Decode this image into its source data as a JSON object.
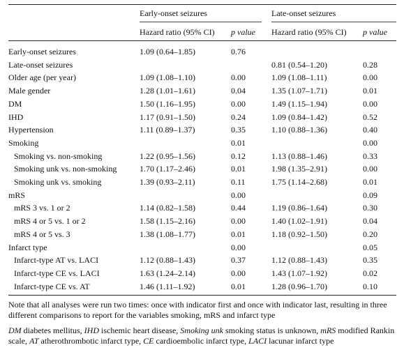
{
  "headers": {
    "group1": "Early-onset seizures",
    "group2": "Late-onset seizures",
    "hr": "Hazard ratio (95% CI)",
    "p": "p value"
  },
  "rows": [
    {
      "label": "Early-onset seizures",
      "indent": false,
      "hr1": "1.09 (0.64–1.85)",
      "p1": "0.76",
      "hr2": "",
      "p2": ""
    },
    {
      "label": "Late-onset seizures",
      "indent": false,
      "hr1": "",
      "p1": "",
      "hr2": "0.81 (0.54–1.20)",
      "p2": "0.28"
    },
    {
      "label": "Older age (per year)",
      "indent": false,
      "hr1": "1.09 (1.08–1.10)",
      "p1": "0.00",
      "hr2": "1.09 (1.08–1.11)",
      "p2": "0.00"
    },
    {
      "label": "Male gender",
      "indent": false,
      "hr1": "1.28 (1.01–1.61)",
      "p1": "0.04",
      "hr2": "1.35 (1.07–1.71)",
      "p2": "0.01"
    },
    {
      "label": "DM",
      "indent": false,
      "hr1": "1.50 (1.16–1.95)",
      "p1": "0.00",
      "hr2": "1.49 (1.15–1.94)",
      "p2": "0.00"
    },
    {
      "label": "IHD",
      "indent": false,
      "hr1": "1.17 (0.91–1.50)",
      "p1": "0.24",
      "hr2": "1.09 (0.84–1.42)",
      "p2": "0.52"
    },
    {
      "label": "Hypertension",
      "indent": false,
      "hr1": "1.11 (0.89–1.37)",
      "p1": "0.35",
      "hr2": "1.10 (0.88–1.36)",
      "p2": "0.40"
    },
    {
      "label": "Smoking",
      "indent": false,
      "hr1": "",
      "p1": "0.01",
      "hr2": "",
      "p2": "0.00"
    },
    {
      "label": "Smoking vs. non-smoking",
      "indent": true,
      "hr1": "1.22 (0.95–1.56)",
      "p1": "0.12",
      "hr2": "1.13 (0.88–1.46)",
      "p2": "0.33"
    },
    {
      "label": "Smoking unk vs. non-smoking",
      "indent": true,
      "hr1": "1.70 (1.17–2.46)",
      "p1": "0.01",
      "hr2": "1.98 (1.35–2.91)",
      "p2": "0.00"
    },
    {
      "label": "Smoking unk vs. smoking",
      "indent": true,
      "hr1": "1.39 (0.93–2.11)",
      "p1": "0.11",
      "hr2": "1.75 (1.14–2.68)",
      "p2": "0.01"
    },
    {
      "label": "mRS",
      "indent": false,
      "hr1": "",
      "p1": "0.00",
      "hr2": "",
      "p2": "0.09"
    },
    {
      "label": "mRS 3 vs. 1 or 2",
      "indent": true,
      "hr1": "1.14 (0.82–1.58)",
      "p1": "0.44",
      "hr2": "1.19 (0.86–1.64)",
      "p2": "0.30"
    },
    {
      "label": "mRS 4 or 5 vs. 1 or 2",
      "indent": true,
      "hr1": "1.58 (1.15–2.16)",
      "p1": "0.00",
      "hr2": "1.40 (1.02–1.91)",
      "p2": "0.04"
    },
    {
      "label": "mRS 4 or 5 vs. 3",
      "indent": true,
      "hr1": "1.38 (1.08–1.77)",
      "p1": "0.01",
      "hr2": "1.18 (0.92–1.50)",
      "p2": "0.20"
    },
    {
      "label": "Infarct type",
      "indent": false,
      "hr1": "",
      "p1": "0.00",
      "hr2": "",
      "p2": "0.05"
    },
    {
      "label": "Infarct-type AT vs. LACI",
      "indent": true,
      "hr1": "1.12 (0.88–1.43)",
      "p1": "0.37",
      "hr2": "1.12 (0.88–1.43)",
      "p2": "0.35"
    },
    {
      "label": "Infarct-type CE vs. LACI",
      "indent": true,
      "hr1": "1.63 (1.24–2.14)",
      "p1": "0.00",
      "hr2": "1.43 (1.07–1.92)",
      "p2": "0.02"
    },
    {
      "label": "Infarct-type CE vs. AT",
      "indent": true,
      "hr1": "1.46 (1.11–1.92)",
      "p1": "0.01",
      "hr2": "1.28 (0.96–1.70)",
      "p2": "0.10"
    }
  ],
  "notes": {
    "note1": "Note that all analyses were run two times: once with indicator first and once with indicator last, resulting in three different comparisons to report for the variables smoking, mRS and infarct type",
    "abbrev": [
      {
        "term": "DM",
        "def": " diabetes mellitus, "
      },
      {
        "term": "IHD",
        "def": " ischemic heart disease, "
      },
      {
        "term": "Smoking unk",
        "def": " smoking status is unknown, "
      },
      {
        "term": "mRS",
        "def": " modified Rankin scale, "
      },
      {
        "term": "AT",
        "def": " atherothrombotic infarct type, "
      },
      {
        "term": "CE",
        "def": " cardioembolic infarct type, "
      },
      {
        "term": "LACI",
        "def": " lacunar infarct type"
      }
    ]
  }
}
